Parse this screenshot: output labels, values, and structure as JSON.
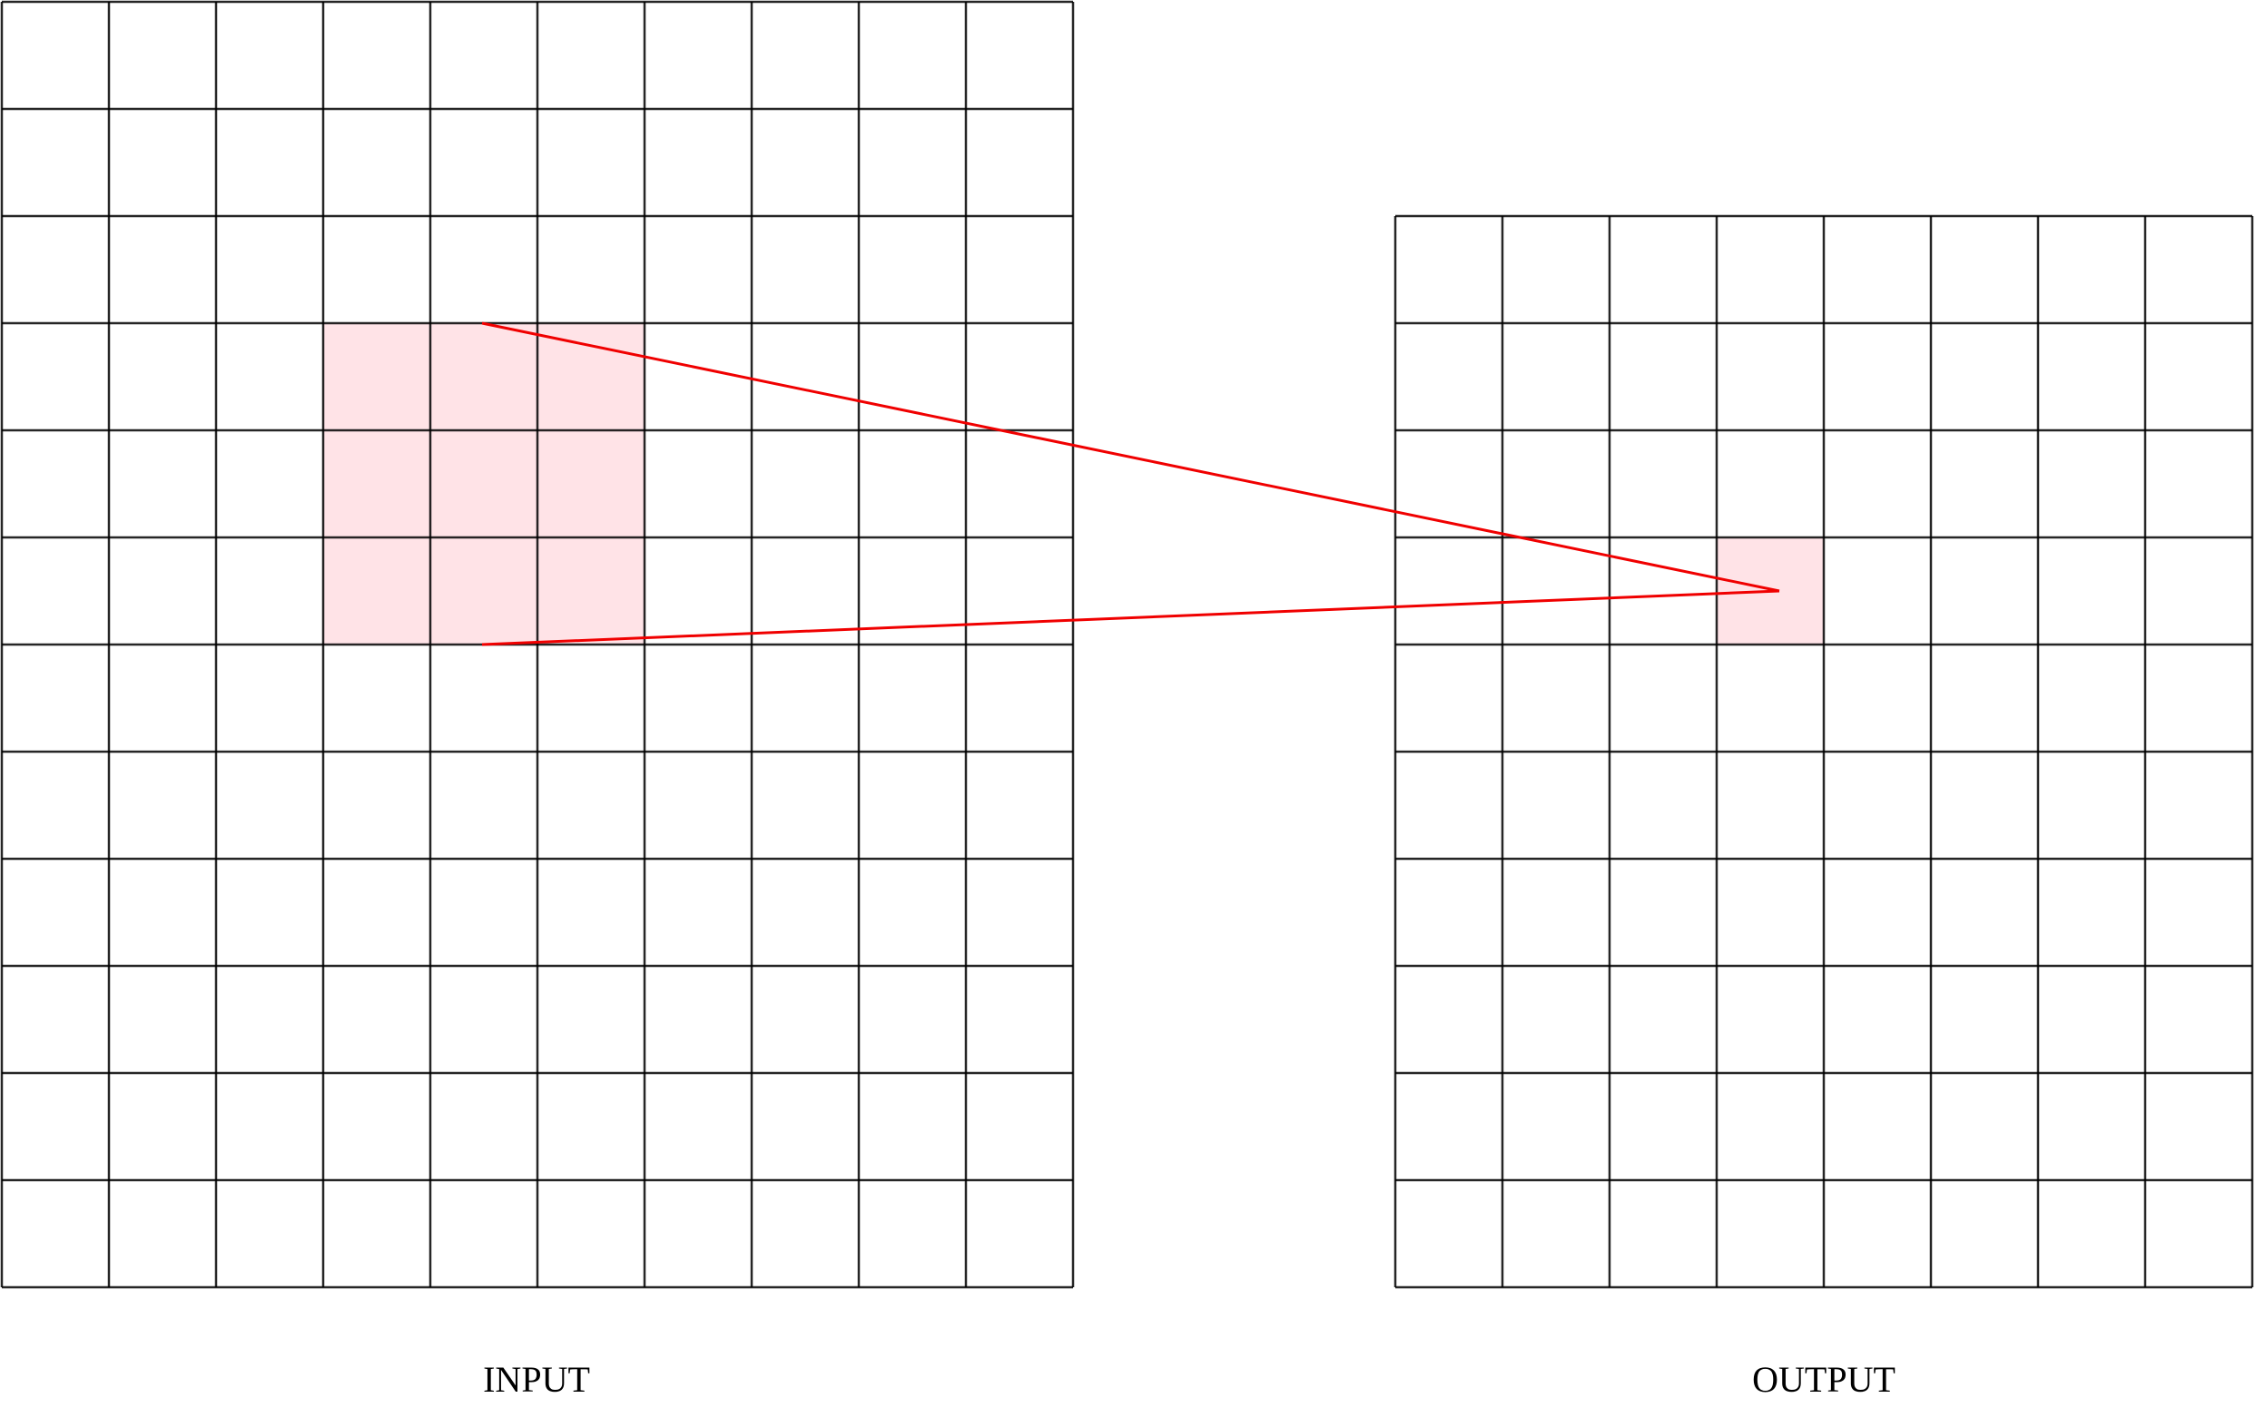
{
  "input": {
    "label": "INPUT"
  },
  "output": {
    "label": "OUTPUT"
  }
}
